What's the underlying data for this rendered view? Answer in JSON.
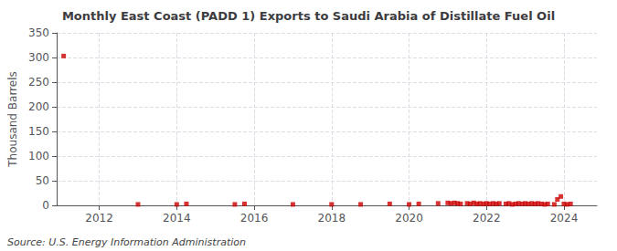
{
  "chart_data": {
    "type": "scatter",
    "title": "Monthly East Coast (PADD 1) Exports to Saudi Arabia of Distillate Fuel Oil",
    "ylabel": "Thousand Barrels",
    "annotation": "Source: U.S. Energy Information Administration",
    "color": "#cc0000",
    "marker": "square",
    "grid": true,
    "xlim": [
      2010.9,
      2024.85
    ],
    "xticks": [
      2012,
      2014,
      2016,
      2018,
      2020,
      2022,
      2024
    ],
    "ylim": [
      0,
      350
    ],
    "yticks": [
      0,
      50,
      100,
      150,
      200,
      250,
      300,
      350
    ],
    "x": [
      2011.08,
      2013.0,
      2014.0,
      2014.25,
      2015.5,
      2015.75,
      2017.0,
      2018.0,
      2018.75,
      2019.5,
      2020.0,
      2020.25,
      2020.75,
      2021.0,
      2021.08,
      2021.17,
      2021.25,
      2021.33,
      2021.5,
      2021.58,
      2021.67,
      2021.75,
      2021.83,
      2021.92,
      2022.0,
      2022.08,
      2022.17,
      2022.25,
      2022.33,
      2022.5,
      2022.58,
      2022.67,
      2022.75,
      2022.83,
      2022.92,
      2023.0,
      2023.08,
      2023.17,
      2023.25,
      2023.33,
      2023.42,
      2023.5,
      2023.58,
      2023.75,
      2023.83,
      2023.92,
      2024.0,
      2024.08,
      2024.17
    ],
    "values": [
      303,
      2,
      2,
      3,
      2,
      3,
      2,
      2,
      2,
      3,
      2,
      3,
      4,
      5,
      4,
      5,
      4,
      3,
      4,
      3,
      5,
      3,
      4,
      3,
      4,
      3,
      4,
      3,
      4,
      3,
      4,
      2,
      3,
      4,
      3,
      4,
      3,
      4,
      3,
      4,
      3,
      2,
      3,
      2,
      12,
      18,
      3,
      2,
      3
    ]
  }
}
